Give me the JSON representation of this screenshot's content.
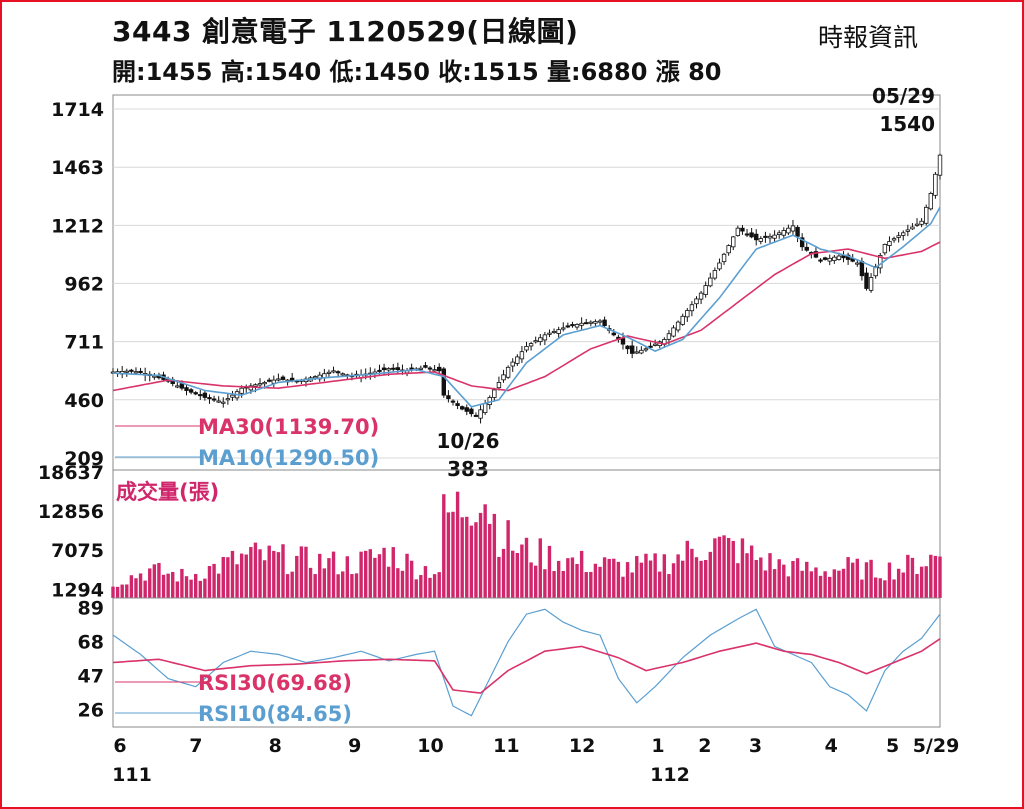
{
  "header": {
    "title": "3443  創意電子 1120529(日線圖)",
    "source": "時報資訊",
    "ohlc": "開:1455 高:1540 低:1450 收:1515 量:6880 漲 80"
  },
  "colors": {
    "candle": "#111111",
    "ma30": "#d9336a",
    "ma10": "#5b9fd1",
    "volume": "#d0266b",
    "grid": "#d8d8d8",
    "frame": "#e81123"
  },
  "chart_data": [
    {
      "type": "line",
      "title": "3443 創意電子 1120529(日線圖)",
      "yticks": [
        "1714",
        "1463",
        "1212",
        "962",
        "711",
        "460",
        "209"
      ],
      "ylim": [
        209,
        1714
      ],
      "grid": true,
      "annotations": [
        {
          "label_top": "05/29",
          "label_bottom": "1540",
          "x": "05/29",
          "y": 1540
        },
        {
          "label_top": "10/26",
          "label_bottom": "383",
          "x": "10/26",
          "y": 383
        }
      ],
      "candles_note": "daily candlesticks",
      "legend": [
        {
          "name": "MA30(1139.70)",
          "color": "#d9336a"
        },
        {
          "name": "MA10(1290.50)",
          "color": "#5b9fd1"
        }
      ],
      "price_points": [
        [
          0,
          580
        ],
        [
          4,
          585
        ],
        [
          8,
          570
        ],
        [
          12,
          540
        ],
        [
          16,
          500
        ],
        [
          20,
          470
        ],
        [
          24,
          450
        ],
        [
          28,
          510
        ],
        [
          32,
          530
        ],
        [
          36,
          550
        ],
        [
          40,
          540
        ],
        [
          44,
          560
        ],
        [
          48,
          585
        ],
        [
          52,
          560
        ],
        [
          56,
          575
        ],
        [
          60,
          595
        ],
        [
          64,
          585
        ],
        [
          68,
          600
        ],
        [
          71,
          585
        ],
        [
          72,
          480
        ],
        [
          76,
          420
        ],
        [
          79,
          390
        ],
        [
          82,
          470
        ],
        [
          86,
          600
        ],
        [
          90,
          690
        ],
        [
          94,
          740
        ],
        [
          98,
          770
        ],
        [
          102,
          790
        ],
        [
          106,
          800
        ],
        [
          110,
          720
        ],
        [
          113,
          660
        ],
        [
          116,
          680
        ],
        [
          120,
          720
        ],
        [
          124,
          820
        ],
        [
          128,
          920
        ],
        [
          132,
          1050
        ],
        [
          136,
          1200
        ],
        [
          140,
          1150
        ],
        [
          144,
          1170
        ],
        [
          148,
          1210
        ],
        [
          150,
          1120
        ],
        [
          154,
          1060
        ],
        [
          158,
          1080
        ],
        [
          162,
          1050
        ],
        [
          164,
          940
        ],
        [
          168,
          1130
        ],
        [
          172,
          1180
        ],
        [
          176,
          1230
        ],
        [
          178,
          1350
        ],
        [
          180,
          1515
        ]
      ],
      "ma10_points": [
        [
          0,
          575
        ],
        [
          10,
          565
        ],
        [
          20,
          500
        ],
        [
          28,
          480
        ],
        [
          36,
          535
        ],
        [
          46,
          555
        ],
        [
          56,
          570
        ],
        [
          66,
          590
        ],
        [
          72,
          560
        ],
        [
          78,
          430
        ],
        [
          84,
          460
        ],
        [
          90,
          620
        ],
        [
          98,
          740
        ],
        [
          106,
          780
        ],
        [
          112,
          730
        ],
        [
          118,
          670
        ],
        [
          124,
          720
        ],
        [
          132,
          900
        ],
        [
          140,
          1110
        ],
        [
          148,
          1170
        ],
        [
          154,
          1110
        ],
        [
          160,
          1080
        ],
        [
          166,
          1030
        ],
        [
          172,
          1120
        ],
        [
          178,
          1220
        ],
        [
          180,
          1290
        ]
      ],
      "ma30_points": [
        [
          0,
          500
        ],
        [
          12,
          545
        ],
        [
          24,
          520
        ],
        [
          36,
          510
        ],
        [
          48,
          540
        ],
        [
          60,
          570
        ],
        [
          70,
          580
        ],
        [
          78,
          520
        ],
        [
          86,
          500
        ],
        [
          94,
          560
        ],
        [
          104,
          680
        ],
        [
          112,
          735
        ],
        [
          120,
          700
        ],
        [
          128,
          760
        ],
        [
          136,
          880
        ],
        [
          144,
          1000
        ],
        [
          152,
          1090
        ],
        [
          160,
          1110
        ],
        [
          168,
          1070
        ],
        [
          176,
          1100
        ],
        [
          180,
          1140
        ]
      ]
    },
    {
      "type": "bar",
      "title": "成交量(張)",
      "yticks": [
        "18637",
        "12856",
        "7075",
        "1294"
      ],
      "ylim": [
        0,
        18637
      ],
      "series": [
        {
          "name": "成交量(張)",
          "color": "#d0266b"
        }
      ],
      "volume_profile": [
        [
          0,
          2500
        ],
        [
          8,
          4500
        ],
        [
          16,
          3500
        ],
        [
          24,
          5500
        ],
        [
          30,
          7000
        ],
        [
          36,
          6500
        ],
        [
          44,
          6000
        ],
        [
          52,
          5500
        ],
        [
          60,
          7500
        ],
        [
          66,
          5000
        ],
        [
          71,
          4500
        ],
        [
          72,
          13000
        ],
        [
          76,
          15000
        ],
        [
          80,
          18637
        ],
        [
          84,
          11000
        ],
        [
          88,
          8000
        ],
        [
          94,
          7000
        ],
        [
          100,
          6000
        ],
        [
          106,
          5500
        ],
        [
          112,
          5000
        ],
        [
          118,
          5500
        ],
        [
          124,
          7000
        ],
        [
          130,
          9000
        ],
        [
          136,
          8000
        ],
        [
          142,
          6000
        ],
        [
          148,
          5000
        ],
        [
          154,
          4500
        ],
        [
          160,
          5000
        ],
        [
          166,
          4500
        ],
        [
          172,
          5000
        ],
        [
          178,
          6500
        ],
        [
          180,
          6880
        ]
      ]
    },
    {
      "type": "line",
      "yticks": [
        "89",
        "68",
        "47",
        "26"
      ],
      "ylim": [
        15,
        95
      ],
      "legend": [
        {
          "name": "RSI30(69.68)",
          "color": "#d9336a"
        },
        {
          "name": "RSI10(84.65)",
          "color": "#5b9fd1"
        }
      ],
      "rsi10_points": [
        [
          0,
          72
        ],
        [
          6,
          60
        ],
        [
          12,
          45
        ],
        [
          18,
          40
        ],
        [
          24,
          55
        ],
        [
          30,
          62
        ],
        [
          36,
          60
        ],
        [
          42,
          55
        ],
        [
          48,
          58
        ],
        [
          54,
          62
        ],
        [
          60,
          56
        ],
        [
          66,
          60
        ],
        [
          70,
          62
        ],
        [
          74,
          28
        ],
        [
          78,
          22
        ],
        [
          82,
          45
        ],
        [
          86,
          68
        ],
        [
          90,
          85
        ],
        [
          94,
          88
        ],
        [
          98,
          80
        ],
        [
          102,
          75
        ],
        [
          106,
          72
        ],
        [
          110,
          45
        ],
        [
          114,
          30
        ],
        [
          118,
          40
        ],
        [
          124,
          58
        ],
        [
          130,
          72
        ],
        [
          136,
          82
        ],
        [
          140,
          88
        ],
        [
          144,
          65
        ],
        [
          148,
          60
        ],
        [
          152,
          55
        ],
        [
          156,
          40
        ],
        [
          160,
          35
        ],
        [
          164,
          25
        ],
        [
          168,
          50
        ],
        [
          172,
          62
        ],
        [
          176,
          70
        ],
        [
          180,
          85
        ]
      ],
      "rsi30_points": [
        [
          0,
          55
        ],
        [
          10,
          57
        ],
        [
          20,
          50
        ],
        [
          30,
          53
        ],
        [
          40,
          54
        ],
        [
          50,
          56
        ],
        [
          60,
          57
        ],
        [
          70,
          56
        ],
        [
          74,
          38
        ],
        [
          80,
          36
        ],
        [
          86,
          50
        ],
        [
          94,
          62
        ],
        [
          102,
          65
        ],
        [
          110,
          58
        ],
        [
          116,
          50
        ],
        [
          124,
          55
        ],
        [
          132,
          62
        ],
        [
          140,
          67
        ],
        [
          146,
          62
        ],
        [
          152,
          60
        ],
        [
          158,
          55
        ],
        [
          164,
          48
        ],
        [
          170,
          55
        ],
        [
          176,
          62
        ],
        [
          180,
          69.68
        ]
      ]
    }
  ],
  "xaxis": {
    "ticks": [
      {
        "label": "6",
        "pos": 0
      },
      {
        "label": "7",
        "pos": 21
      },
      {
        "label": "8",
        "pos": 43
      },
      {
        "label": "9",
        "pos": 65
      },
      {
        "label": "10",
        "pos": 86
      },
      {
        "label": "11",
        "pos": 107
      },
      {
        "label": "12",
        "pos": 128
      },
      {
        "label": "1",
        "pos": 149
      },
      {
        "label": "2",
        "pos": 162
      },
      {
        "label": "3",
        "pos": 176
      },
      {
        "label": "4",
        "pos": 197
      },
      {
        "label": "5",
        "pos": 214
      },
      {
        "label": "5/29",
        "pos": 226
      }
    ],
    "years": [
      {
        "label": "111",
        "pos": 0
      },
      {
        "label": "112",
        "pos": 149
      }
    ]
  }
}
